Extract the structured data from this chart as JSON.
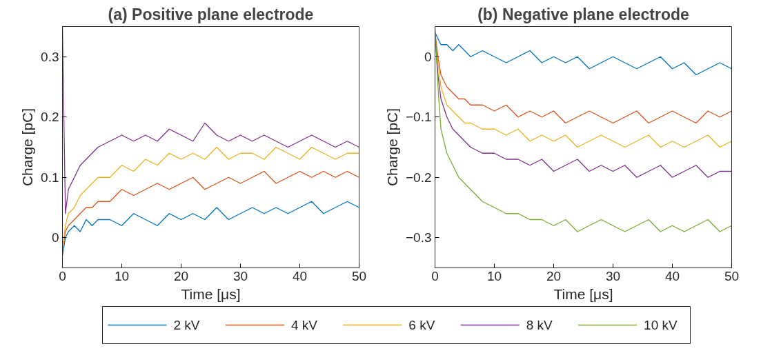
{
  "chart_data": [
    {
      "type": "line",
      "title": "(a) Positive plane electrode",
      "xlabel": "Time [μs]",
      "ylabel": "Charge [pC]",
      "xlim": [
        0,
        50
      ],
      "ylim": [
        -0.05,
        0.35
      ],
      "xticks": [
        0,
        10,
        20,
        30,
        40,
        50
      ],
      "yticks": [
        0,
        0.1,
        0.2,
        0.3
      ],
      "legend": "bottom",
      "x": [
        0,
        0.5,
        1,
        2,
        3,
        4,
        5,
        6,
        8,
        10,
        12,
        14,
        16,
        18,
        20,
        22,
        24,
        26,
        28,
        30,
        32,
        34,
        36,
        38,
        40,
        42,
        44,
        46,
        48,
        50
      ],
      "series": [
        {
          "name": "2 kV",
          "color": "#0072bd",
          "values": [
            -0.03,
            0.0,
            0.01,
            0.02,
            0.01,
            0.03,
            0.02,
            0.03,
            0.03,
            0.02,
            0.04,
            0.03,
            0.02,
            0.04,
            0.03,
            0.04,
            0.03,
            0.05,
            0.03,
            0.04,
            0.05,
            0.04,
            0.05,
            0.04,
            0.05,
            0.06,
            0.04,
            0.05,
            0.06,
            0.05
          ]
        },
        {
          "name": "4 kV",
          "color": "#d95319",
          "values": [
            -0.02,
            0.01,
            0.02,
            0.03,
            0.04,
            0.05,
            0.05,
            0.06,
            0.06,
            0.08,
            0.07,
            0.08,
            0.09,
            0.08,
            0.09,
            0.1,
            0.08,
            0.09,
            0.1,
            0.09,
            0.1,
            0.11,
            0.09,
            0.1,
            0.11,
            0.1,
            0.11,
            0.1,
            0.11,
            0.1
          ]
        },
        {
          "name": "6 kV",
          "color": "#edb120",
          "values": [
            -0.02,
            0.02,
            0.04,
            0.05,
            0.07,
            0.08,
            0.09,
            0.1,
            0.1,
            0.12,
            0.11,
            0.13,
            0.12,
            0.14,
            0.13,
            0.14,
            0.13,
            0.15,
            0.13,
            0.14,
            0.14,
            0.13,
            0.15,
            0.14,
            0.13,
            0.15,
            0.14,
            0.13,
            0.14,
            0.14
          ]
        },
        {
          "name": "8 kV",
          "color": "#7e2f8e",
          "values": [
            0.35,
            0.04,
            0.08,
            0.1,
            0.12,
            0.13,
            0.14,
            0.15,
            0.16,
            0.17,
            0.16,
            0.17,
            0.16,
            0.18,
            0.17,
            0.16,
            0.19,
            0.17,
            0.16,
            0.17,
            0.16,
            0.17,
            0.16,
            0.15,
            0.16,
            0.17,
            0.16,
            0.15,
            0.16,
            0.15
          ]
        }
      ]
    },
    {
      "type": "line",
      "title": "(b) Negative plane electrode",
      "xlabel": "Time [μs]",
      "ylabel": "Charge [pC]",
      "xlim": [
        0,
        50
      ],
      "ylim": [
        -0.35,
        0.05
      ],
      "xticks": [
        0,
        10,
        20,
        30,
        40,
        50
      ],
      "yticks": [
        -0.3,
        -0.2,
        -0.1,
        0
      ],
      "legend": "bottom",
      "x": [
        0,
        0.5,
        1,
        2,
        3,
        4,
        5,
        6,
        8,
        10,
        12,
        14,
        16,
        18,
        20,
        22,
        24,
        26,
        28,
        30,
        32,
        34,
        36,
        38,
        40,
        42,
        44,
        46,
        48,
        50
      ],
      "series": [
        {
          "name": "2 kV",
          "color": "#0072bd",
          "values": [
            0.04,
            0.03,
            0.02,
            0.02,
            0.01,
            0.02,
            0.01,
            0.0,
            0.01,
            0.0,
            -0.01,
            0.0,
            0.01,
            -0.01,
            0.0,
            -0.01,
            0.0,
            -0.02,
            -0.01,
            0.0,
            -0.01,
            -0.02,
            -0.01,
            0.0,
            -0.02,
            -0.01,
            -0.03,
            -0.02,
            -0.01,
            -0.02
          ]
        },
        {
          "name": "4 kV",
          "color": "#d95319",
          "values": [
            0.04,
            0.0,
            -0.03,
            -0.05,
            -0.06,
            -0.07,
            -0.07,
            -0.08,
            -0.08,
            -0.09,
            -0.08,
            -0.1,
            -0.09,
            -0.1,
            -0.09,
            -0.11,
            -0.1,
            -0.09,
            -0.1,
            -0.11,
            -0.1,
            -0.09,
            -0.11,
            -0.1,
            -0.09,
            -0.1,
            -0.11,
            -0.09,
            -0.1,
            -0.09
          ]
        },
        {
          "name": "6 kV",
          "color": "#edb120",
          "values": [
            0.04,
            -0.01,
            -0.05,
            -0.08,
            -0.09,
            -0.1,
            -0.11,
            -0.11,
            -0.12,
            -0.12,
            -0.13,
            -0.12,
            -0.14,
            -0.13,
            -0.14,
            -0.13,
            -0.15,
            -0.14,
            -0.13,
            -0.14,
            -0.15,
            -0.14,
            -0.13,
            -0.15,
            -0.14,
            -0.15,
            -0.14,
            -0.13,
            -0.15,
            -0.14
          ]
        },
        {
          "name": "8 kV",
          "color": "#7e2f8e",
          "values": [
            0.04,
            -0.03,
            -0.07,
            -0.1,
            -0.12,
            -0.13,
            -0.14,
            -0.15,
            -0.16,
            -0.16,
            -0.17,
            -0.17,
            -0.18,
            -0.17,
            -0.19,
            -0.18,
            -0.17,
            -0.19,
            -0.18,
            -0.19,
            -0.18,
            -0.2,
            -0.19,
            -0.18,
            -0.2,
            -0.19,
            -0.18,
            -0.2,
            -0.19,
            -0.19
          ]
        },
        {
          "name": "10 kV",
          "color": "#77ac30",
          "values": [
            0.05,
            -0.05,
            -0.12,
            -0.16,
            -0.18,
            -0.2,
            -0.21,
            -0.22,
            -0.24,
            -0.25,
            -0.26,
            -0.26,
            -0.27,
            -0.27,
            -0.28,
            -0.27,
            -0.29,
            -0.28,
            -0.27,
            -0.28,
            -0.29,
            -0.28,
            -0.27,
            -0.29,
            -0.28,
            -0.29,
            -0.28,
            -0.27,
            -0.29,
            -0.28
          ]
        }
      ]
    }
  ]
}
